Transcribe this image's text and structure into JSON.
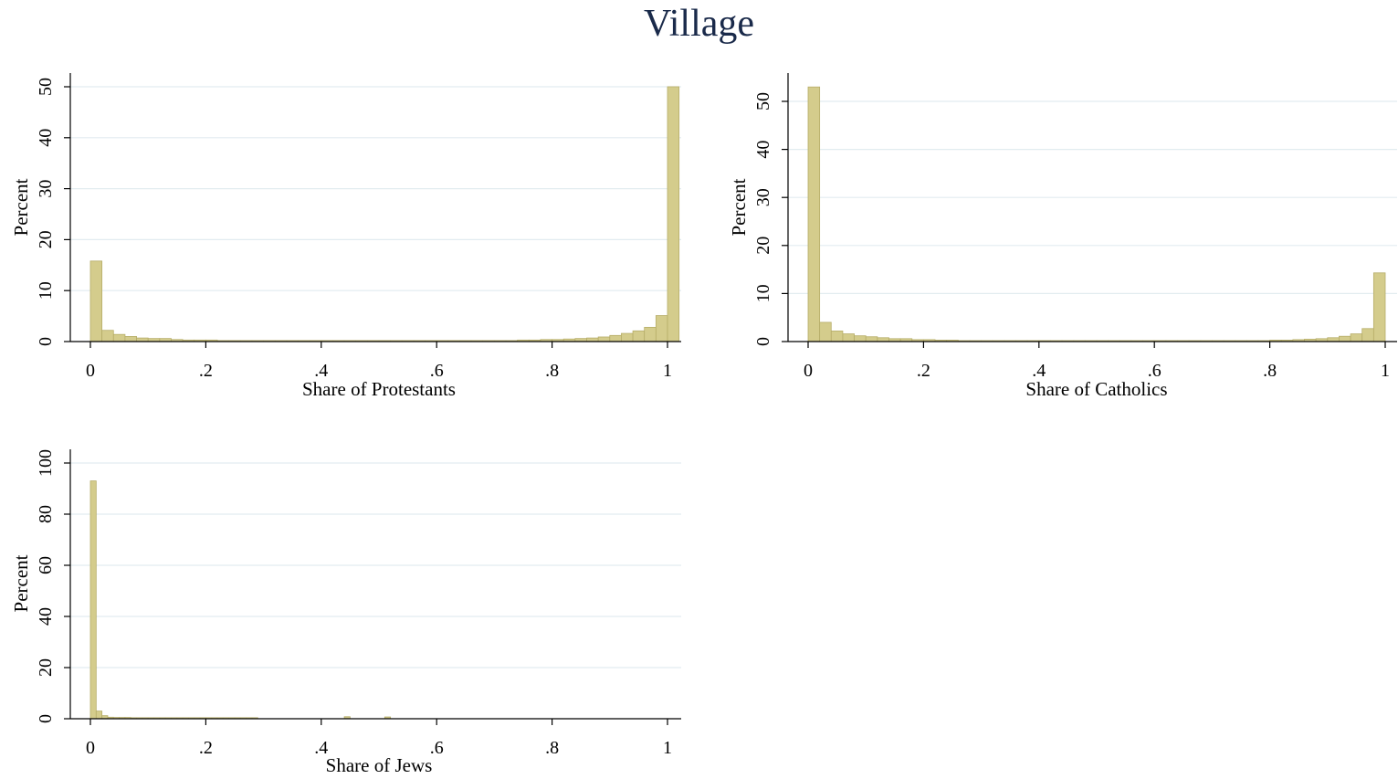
{
  "title": "Village",
  "colors": {
    "bar_fill": "#d4cc8c",
    "bar_edge": "#b6ad68",
    "grid": "#e2ecf0",
    "title": "#1a2a4a"
  },
  "chart_data": [
    {
      "type": "bar",
      "subtype": "histogram",
      "xlabel": "Share of Protestants",
      "ylabel": "Percent",
      "xlim": [
        0,
        1
      ],
      "ylim": [
        0,
        50
      ],
      "xticks": [
        0,
        0.2,
        0.4,
        0.6,
        0.8,
        1
      ],
      "xtick_labels": [
        "0",
        ".2",
        ".4",
        ".6",
        ".8",
        "1"
      ],
      "yticks": [
        0,
        10,
        20,
        30,
        40,
        50
      ],
      "ytick_labels": [
        "0",
        "10",
        "20",
        "30",
        "40",
        "50"
      ],
      "grid": true,
      "bin_width": 0.02,
      "bin_start": 0,
      "values": [
        15.8,
        2.2,
        1.4,
        1.0,
        0.7,
        0.6,
        0.6,
        0.4,
        0.3,
        0.3,
        0.3,
        0.2,
        0.2,
        0.2,
        0.2,
        0.2,
        0.2,
        0.2,
        0.2,
        0.2,
        0.2,
        0.2,
        0.2,
        0.2,
        0.2,
        0.2,
        0.2,
        0.2,
        0.2,
        0.2,
        0.2,
        0.2,
        0.2,
        0.2,
        0.2,
        0.2,
        0.2,
        0.3,
        0.3,
        0.4,
        0.4,
        0.5,
        0.6,
        0.7,
        0.9,
        1.2,
        1.6,
        2.1,
        2.8,
        5.1,
        50.0
      ]
    },
    {
      "type": "bar",
      "subtype": "histogram",
      "xlabel": "Share of Catholics",
      "ylabel": "Percent",
      "xlim": [
        0,
        1
      ],
      "ylim": [
        0,
        55
      ],
      "xticks": [
        0,
        0.2,
        0.4,
        0.6,
        0.8,
        1
      ],
      "xtick_labels": [
        "0",
        ".2",
        ".4",
        ".6",
        ".8",
        "1"
      ],
      "yticks": [
        0,
        10,
        20,
        30,
        40,
        50
      ],
      "ytick_labels": [
        "0",
        "10",
        "20",
        "30",
        "40",
        "50"
      ],
      "grid": true,
      "bin_width": 0.02,
      "bin_start": 0,
      "values": [
        53.0,
        4.0,
        2.2,
        1.6,
        1.2,
        1.0,
        0.8,
        0.6,
        0.6,
        0.4,
        0.4,
        0.3,
        0.3,
        0.2,
        0.2,
        0.2,
        0.2,
        0.2,
        0.2,
        0.2,
        0.2,
        0.2,
        0.2,
        0.2,
        0.2,
        0.2,
        0.2,
        0.2,
        0.2,
        0.2,
        0.2,
        0.2,
        0.2,
        0.2,
        0.2,
        0.2,
        0.2,
        0.2,
        0.2,
        0.2,
        0.3,
        0.3,
        0.4,
        0.5,
        0.6,
        0.8,
        1.1,
        1.6,
        2.7,
        14.3
      ]
    },
    {
      "type": "bar",
      "subtype": "histogram",
      "xlabel": "Share of Jews",
      "ylabel": "Percent",
      "xlim": [
        0,
        1
      ],
      "ylim": [
        0,
        100
      ],
      "xticks": [
        0,
        0.2,
        0.4,
        0.6,
        0.8,
        1
      ],
      "xtick_labels": [
        "0",
        ".2",
        ".4",
        ".6",
        ".8",
        "1"
      ],
      "yticks": [
        0,
        20,
        40,
        60,
        80,
        100
      ],
      "ytick_labels": [
        "0",
        "20",
        "40",
        "60",
        "80",
        "100"
      ],
      "grid": true,
      "bin_width": 0.01,
      "bin_start": 0,
      "values": [
        93.0,
        3.0,
        1.2,
        0.6,
        0.5,
        0.5,
        0.5,
        0.4,
        0.4,
        0.4,
        0.4,
        0.4,
        0.4,
        0.4,
        0.4,
        0.4,
        0.4,
        0.4,
        0.4,
        0.4,
        0.4,
        0.4,
        0.4,
        0.4,
        0.4,
        0.4,
        0.4,
        0.4,
        0.4,
        0,
        0,
        0,
        0,
        0,
        0,
        0,
        0,
        0,
        0,
        0,
        0,
        0,
        0,
        0,
        0.8,
        0,
        0,
        0,
        0,
        0,
        0,
        0.7
      ]
    }
  ]
}
